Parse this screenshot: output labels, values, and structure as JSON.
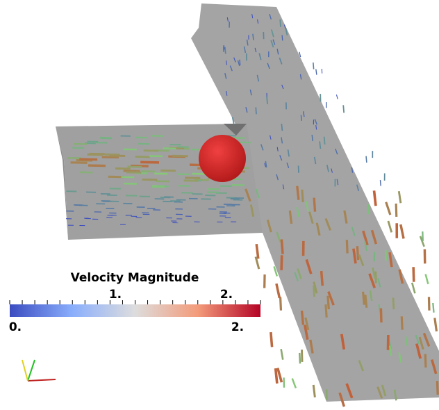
{
  "colorbar": {
    "title": "Velocity Magnitude",
    "top_labels": [
      "1.",
      "2."
    ],
    "range_labels": [
      "0.",
      "2."
    ]
  }
}
